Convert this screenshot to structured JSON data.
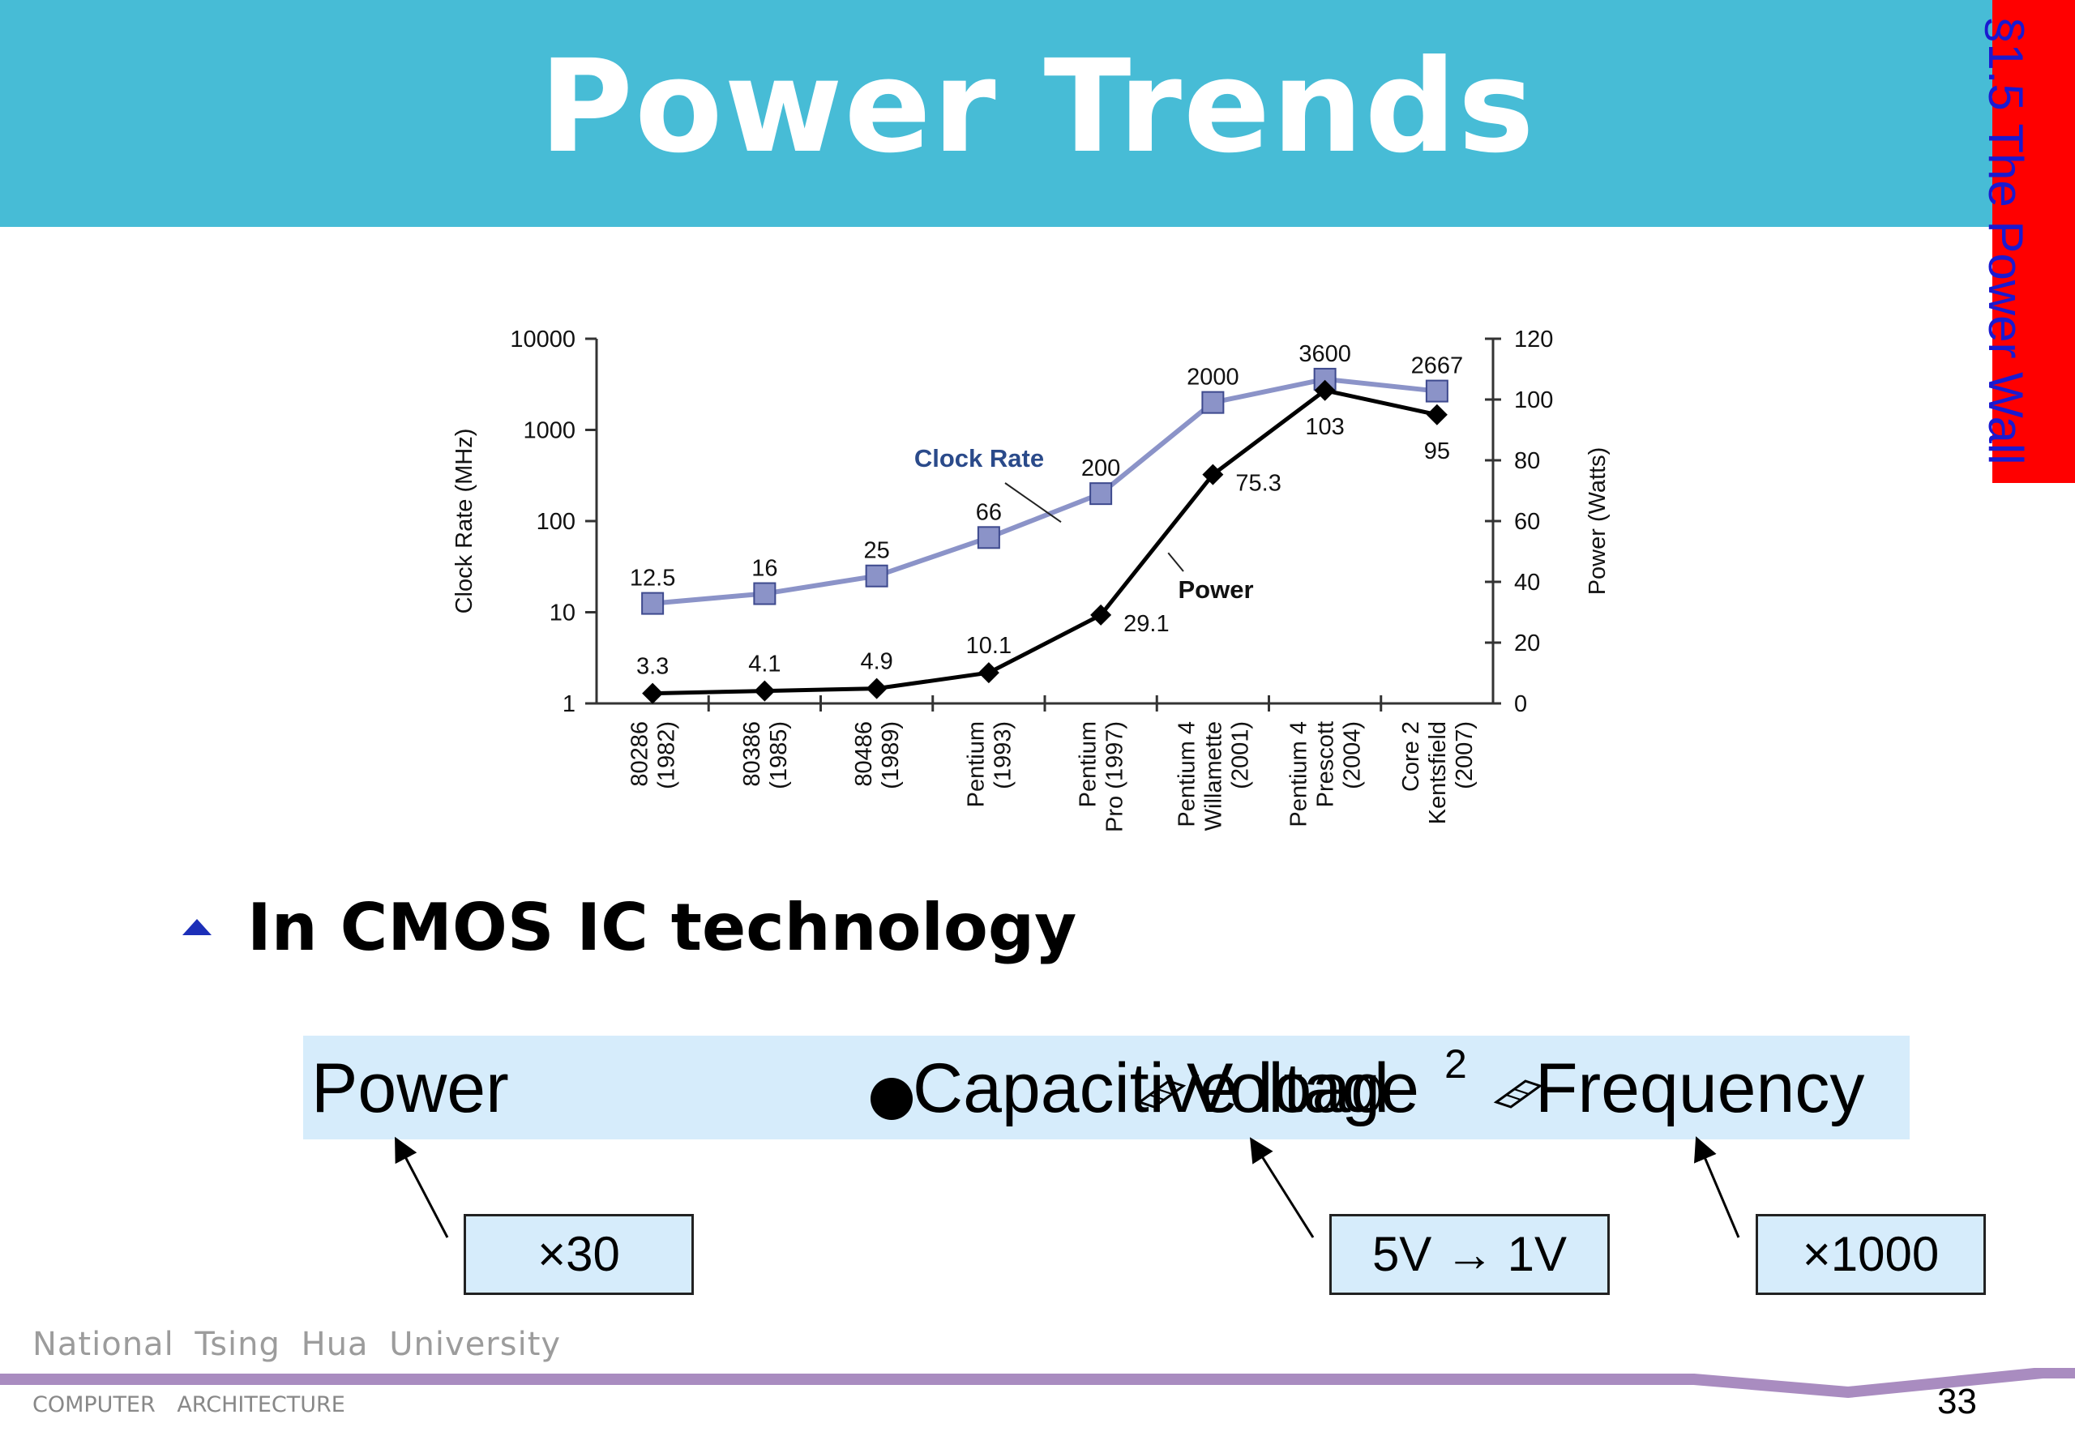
{
  "slide": {
    "title": "Power Trends",
    "section_tab": "§1.5 The Power Wall",
    "bullet": "In CMOS IC technology",
    "formula": {
      "power": "Power",
      "capacitive": "Capacitive load",
      "voltage": "Voltage",
      "voltage_exp": "2",
      "frequency": "Frequency"
    },
    "boxes": {
      "power_factor": "×30",
      "voltage_change": "5V → 1V",
      "frequency_factor": "×1000"
    },
    "footer": {
      "university": "National Tsing Hua University",
      "course": "COMPUTER ARCHITECTURE",
      "page": "33"
    }
  },
  "chart_data": {
    "type": "line",
    "categories": [
      [
        "80286",
        "(1982)"
      ],
      [
        "80386",
        "(1985)"
      ],
      [
        "80486",
        "(1989)"
      ],
      [
        "Pentium",
        "(1993)"
      ],
      [
        "Pentium",
        "Pro (1997)"
      ],
      [
        "Pentium 4",
        "Willamette",
        "(2001)"
      ],
      [
        "Pentium 4",
        "Prescott",
        "(2004)"
      ],
      [
        "Core 2",
        "Kentsfield",
        "(2007)"
      ]
    ],
    "series": [
      {
        "name": "Clock Rate",
        "axis": "left",
        "color": "#8b93c8",
        "values": [
          12.5,
          16,
          25,
          66,
          200,
          2000,
          3600,
          2667
        ],
        "labels": [
          "12.5",
          "16",
          "25",
          "66",
          "200",
          "2000",
          "3600",
          "2667"
        ]
      },
      {
        "name": "Power",
        "axis": "right",
        "color": "#000000",
        "values": [
          3.3,
          4.1,
          4.9,
          10.1,
          29.1,
          75.3,
          103,
          95
        ],
        "labels": [
          "3.3",
          "4.1",
          "4.9",
          "10.1",
          "29.1",
          "75.3",
          "103",
          "95"
        ]
      }
    ],
    "left_axis": {
      "label": "Clock Rate (MHz)",
      "scale": "log",
      "ticks": [
        1,
        10,
        100,
        1000,
        10000
      ],
      "tick_labels": [
        "1",
        "10",
        "100",
        "1000",
        "10000"
      ]
    },
    "right_axis": {
      "label": "Power (Watts)",
      "scale": "linear",
      "ticks": [
        0,
        20,
        40,
        60,
        80,
        100,
        120
      ],
      "tick_labels": [
        "0",
        "20",
        "40",
        "60",
        "80",
        "100",
        "120"
      ]
    },
    "legend": "inline labels"
  }
}
